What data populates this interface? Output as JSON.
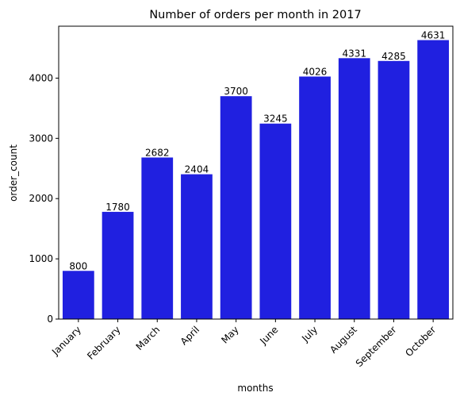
{
  "chart_data": {
    "type": "bar",
    "title": "Number of orders per month in 2017",
    "xlabel": "months",
    "ylabel": "order_count",
    "categories": [
      "January",
      "February",
      "March",
      "April",
      "May",
      "June",
      "July",
      "August",
      "September",
      "October"
    ],
    "values": [
      800,
      1780,
      2682,
      2404,
      3700,
      3245,
      4026,
      4331,
      4285,
      4631
    ],
    "data_labels": [
      "800",
      "1780",
      "2682",
      "2404",
      "3700",
      "3245",
      "4026",
      "4331",
      "4285",
      "4631"
    ],
    "yticks": [
      0,
      1000,
      2000,
      3000,
      4000
    ],
    "ylim": [
      0,
      4862
    ],
    "bar_color": "#2020e0",
    "grid": false,
    "legend": "none"
  }
}
